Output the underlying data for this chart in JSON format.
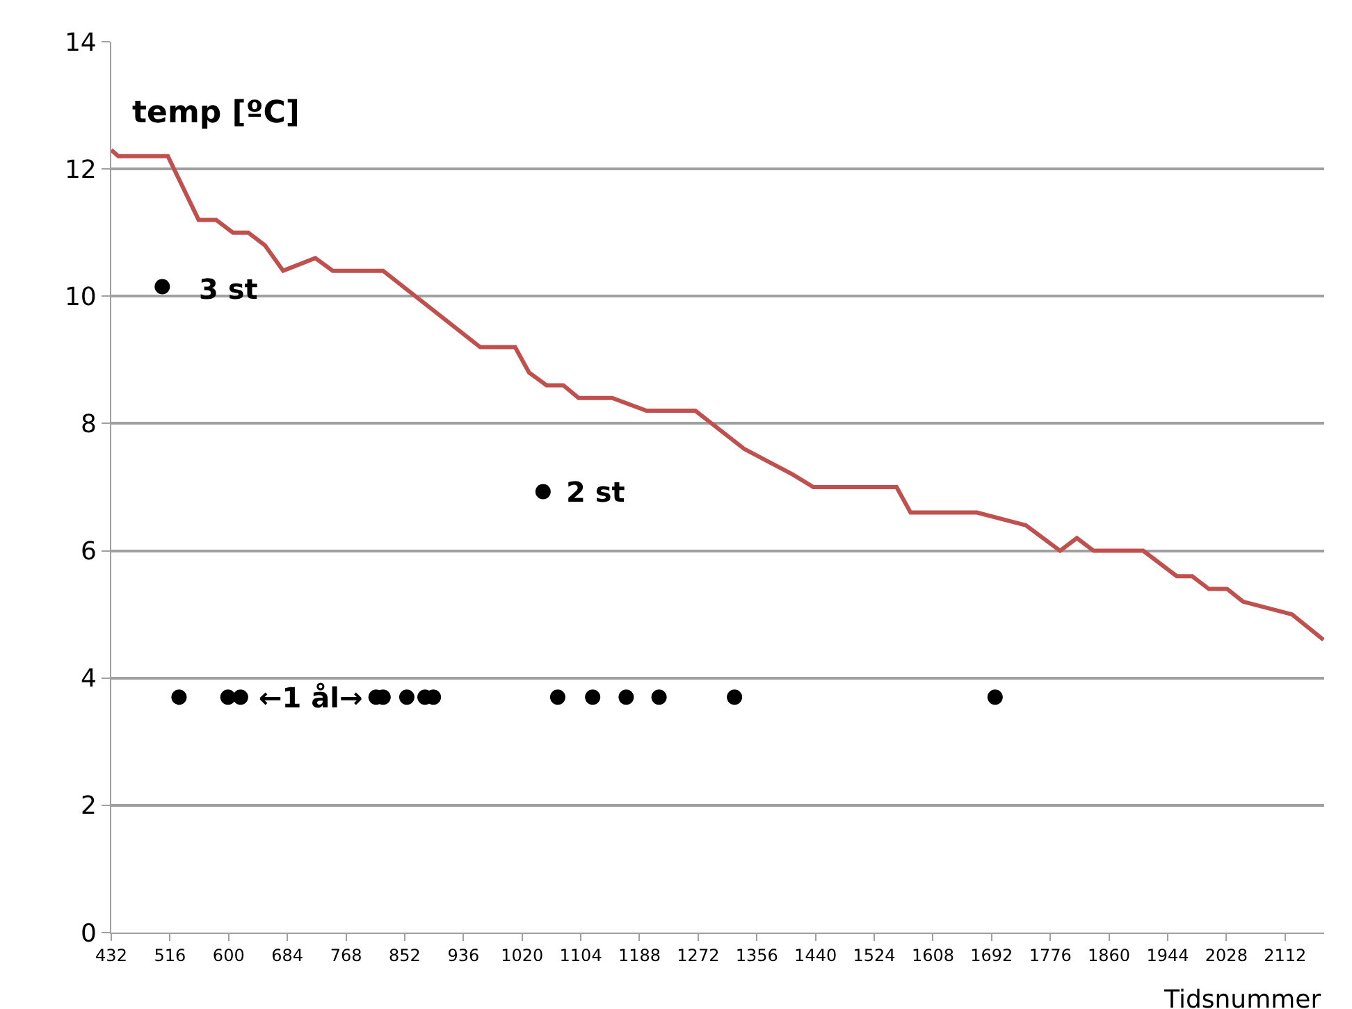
{
  "chart_data": {
    "type": "line",
    "ylabel": "temp [ºC]",
    "xlabel": "Tidsnummer",
    "xlim": [
      432,
      2168
    ],
    "xticks": [
      432,
      516,
      600,
      684,
      768,
      852,
      936,
      1020,
      1104,
      1188,
      1272,
      1356,
      1440,
      1524,
      1608,
      1692,
      1776,
      1860,
      1944,
      2028,
      2112
    ],
    "ylim": [
      0,
      14
    ],
    "yticks": [
      0,
      2,
      4,
      6,
      8,
      10,
      12,
      14
    ],
    "grid": "y",
    "series": [
      {
        "color": "#c0504d",
        "marker": "none",
        "line_style": "solid",
        "x": [
          432,
          442,
          513,
          557,
          582,
          606,
          628,
          652,
          678,
          724,
          749,
          821,
          960,
          1010,
          1030,
          1055,
          1079,
          1101,
          1149,
          1198,
          1268,
          1338,
          1407,
          1437,
          1556,
          1576,
          1671,
          1741,
          1790,
          1814,
          1838,
          1909,
          1957,
          1979,
          2003,
          2029,
          2052,
          2122,
          2167
        ],
        "values": [
          12.3,
          12.2,
          12.2,
          11.2,
          11.2,
          11.0,
          11.0,
          10.8,
          10.4,
          10.6,
          10.4,
          10.4,
          9.2,
          9.2,
          8.8,
          8.6,
          8.6,
          8.4,
          8.4,
          8.2,
          8.2,
          7.6,
          7.2,
          7.0,
          7.0,
          6.6,
          6.6,
          6.4,
          6.0,
          6.2,
          6.0,
          6.0,
          5.6,
          5.6,
          5.4,
          5.4,
          5.2,
          5.0,
          4.6
        ]
      },
      {
        "type": "scatter",
        "color": "#000000",
        "marker": "circle",
        "x": [
          505,
          1050,
          529,
          599,
          617,
          811,
          821,
          855,
          881,
          893,
          1071,
          1121,
          1169,
          1216,
          1324,
          1697
        ],
        "values": [
          10.15,
          6.93,
          3.7,
          3.7,
          3.7,
          3.7,
          3.7,
          3.7,
          3.7,
          3.7,
          3.7,
          3.7,
          3.7,
          3.7,
          3.7,
          3.7
        ]
      }
    ],
    "annotations": [
      {
        "text": "3 st",
        "x": 505,
        "y": 10.15
      },
      {
        "text": "2 st",
        "x": 1050,
        "y": 6.93
      },
      "←1 ål→"
    ]
  }
}
